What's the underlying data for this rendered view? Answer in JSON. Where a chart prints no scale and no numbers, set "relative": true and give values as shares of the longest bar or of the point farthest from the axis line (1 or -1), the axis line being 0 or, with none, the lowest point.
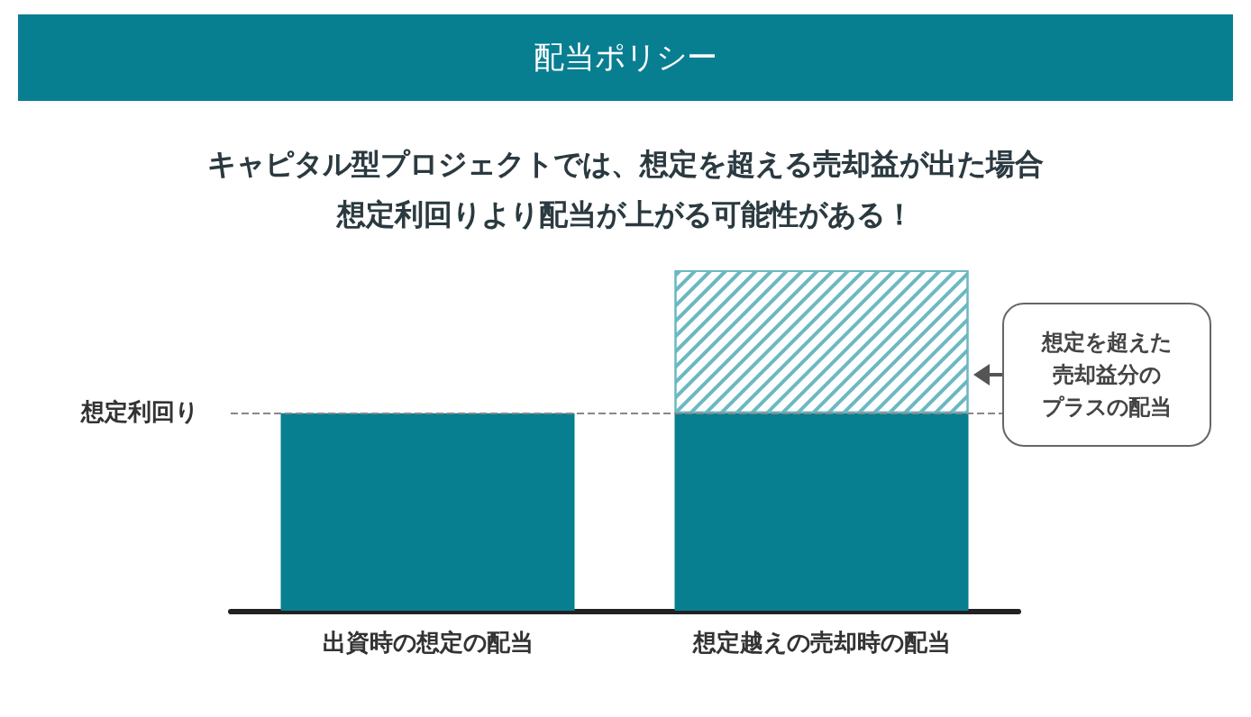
{
  "chart_data": {
    "type": "bar",
    "title": "配当ポリシー",
    "subtitle": "キャピタル型プロジェクトでは、想定を超える売却益が出た場合想定利回りより配当が上がる可能性がある！",
    "categories": [
      "出資時の想定の配当",
      "想定越えの売却時の配当"
    ],
    "relative": true,
    "stacked": true,
    "series": [
      {
        "color": "#087e91",
        "values": [
          0.58,
          0.58
        ]
      },
      {
        "color": "#6bb8c2",
        "values": [
          null,
          0.42
        ]
      }
    ],
    "ref_lines": [
      {
        "axis": "y",
        "value": 0.58,
        "label": "想定利回り",
        "color": "#888888",
        "line_style": "dashed"
      }
    ],
    "annotations": [
      "想定を超えた",
      "売却益分の",
      "プラスの配当"
    ]
  }
}
